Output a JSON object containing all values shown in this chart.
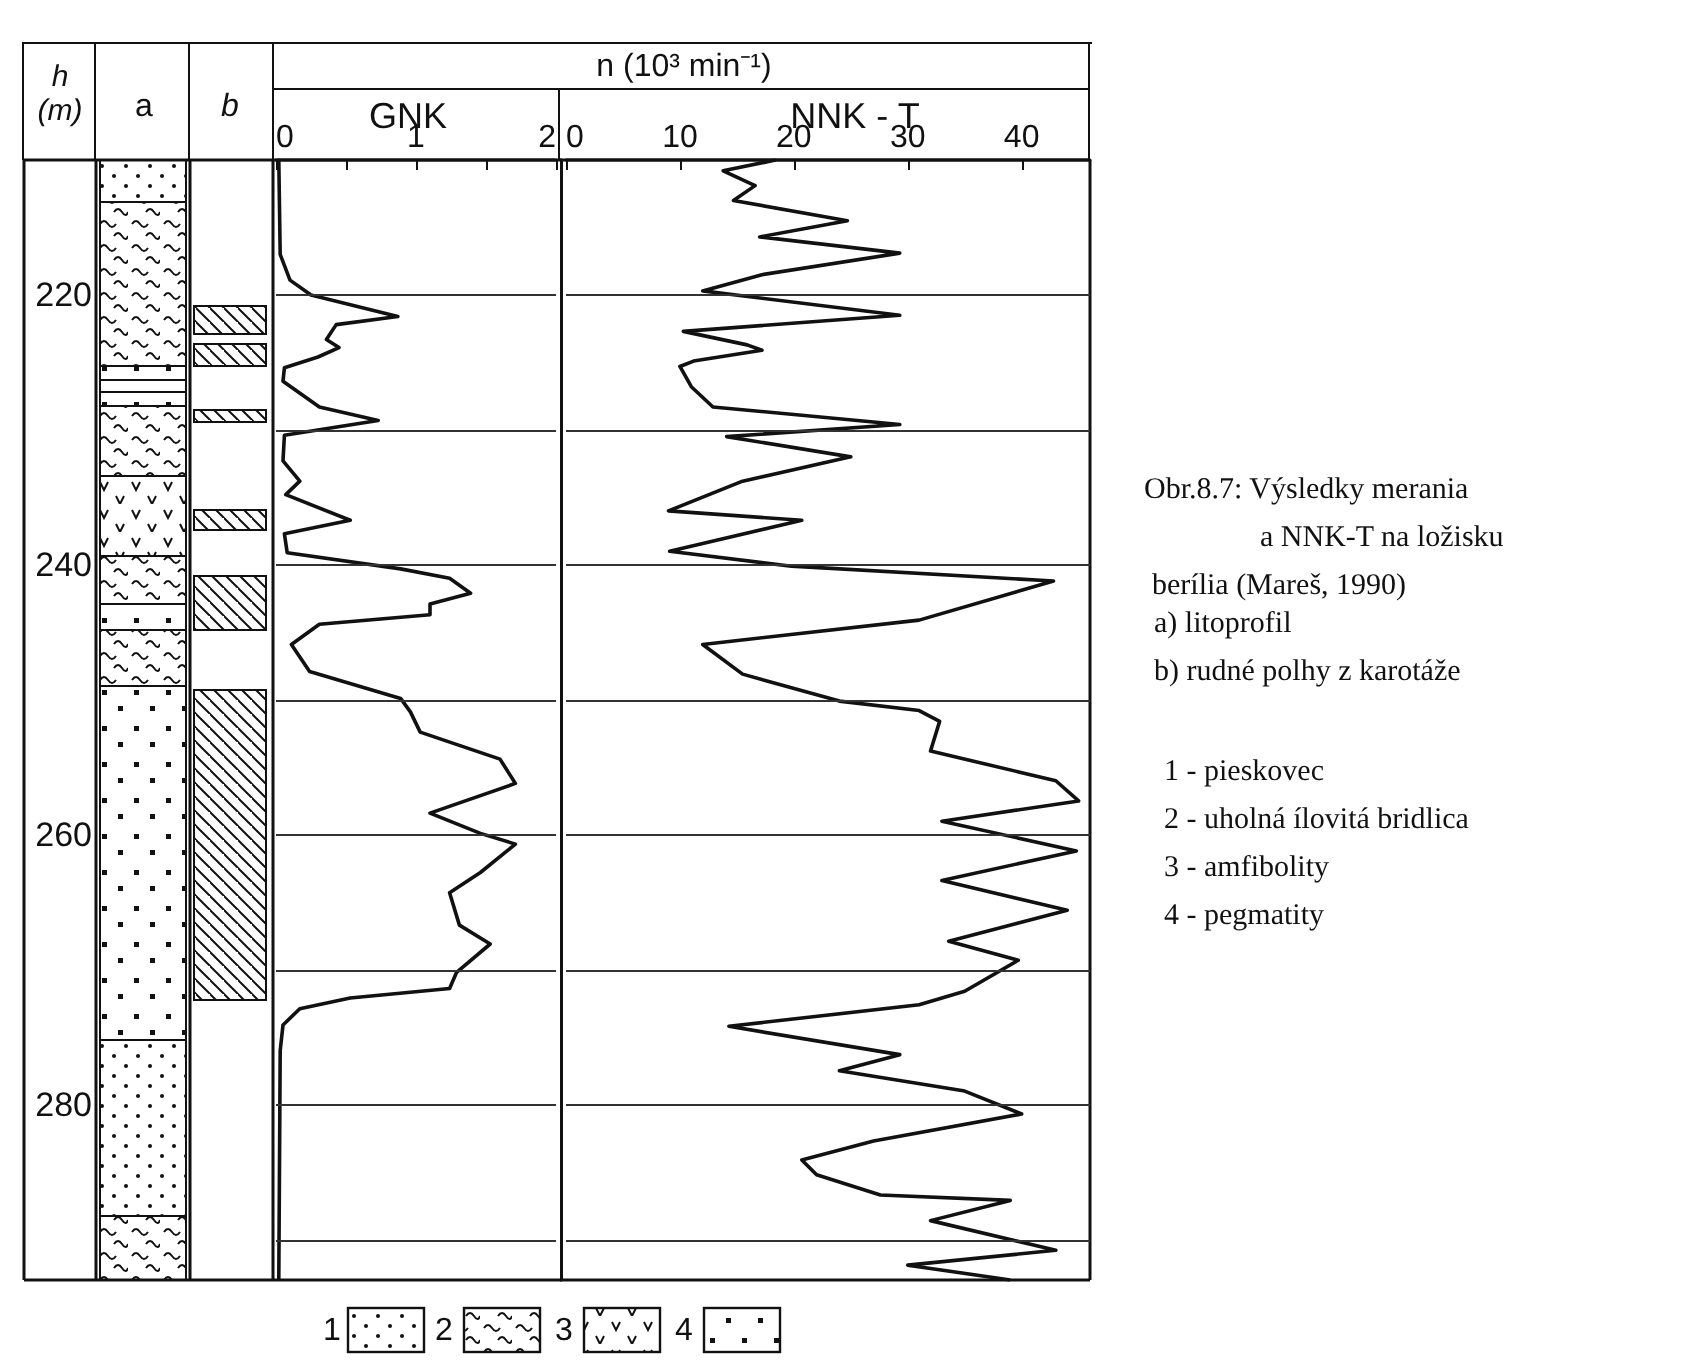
{
  "chart_data": [
    {
      "type": "line",
      "ylabel": "h (m)",
      "ylim": [
        293,
        210
      ],
      "yticks": [
        220,
        {
          "value": 230,
          "label": null
        },
        240,
        {
          "value": 250,
          "label": null
        },
        260,
        {
          "value": 270,
          "label": null
        },
        280,
        {
          "value": 290,
          "label": null
        }
      ],
      "xlim": [
        0,
        2
      ],
      "xticks": [
        0,
        {
          "value": 0.5,
          "label": null
        },
        1,
        {
          "value": 1.5,
          "label": null
        },
        2
      ],
      "grid": "y",
      "marker": "none",
      "series": [
        {
          "name": "GNK",
          "color": "#111111",
          "x": [
            0.02,
            0.03,
            0.1,
            0.25,
            0.87,
            0.43,
            0.36,
            0.45,
            0.3,
            0.06,
            0.05,
            0.31,
            0.73,
            0.06,
            0.05,
            0.17,
            0.07,
            0.53,
            0.06,
            0.08,
            0.89,
            1.24,
            1.39,
            1.1,
            1.1,
            0.31,
            0.11,
            0.24,
            0.89,
            0.96,
            1.03,
            1.6,
            1.71,
            1.1,
            1.46,
            1.71,
            1.46,
            1.24,
            1.31,
            1.53,
            1.29,
            1.24,
            0.53,
            0.17,
            0.05,
            0.03,
            0.02
          ],
          "values": [
            210,
            217,
            218.9,
            220,
            221.6,
            222.2,
            223.3,
            223.9,
            224.6,
            225.4,
            226.4,
            228.3,
            229.3,
            230.4,
            232.3,
            233.8,
            234.8,
            236.7,
            237.7,
            239.1,
            240.3,
            241,
            242.1,
            242.9,
            243.7,
            244.4,
            245.9,
            247.9,
            249.9,
            250.9,
            252.4,
            254.4,
            256.2,
            258.4,
            259.9,
            260.7,
            262.8,
            264.3,
            266.7,
            268.1,
            270.2,
            271.4,
            272.1,
            272.9,
            274.1,
            276,
            293
          ]
        }
      ],
      "annotations": [
        "a",
        "b",
        "Obr.8.7: Výsledky merania\na NNK-T na ložisku\nberília (Mareš, 1990)",
        "a) litoprofil",
        "b) rudné polhy z karotáže",
        "1 - pieskovec",
        "2 - uholná ílovitá bridlica",
        "3 - amfibolity",
        "4 - pegmatity",
        "1",
        "2",
        "3",
        "4"
      ]
    },
    {
      "type": "line",
      "title": "n (10³ min⁻¹)",
      "ylim": [
        293,
        210
      ],
      "yticks": [
        220,
        {
          "value": 230,
          "label": null
        },
        240,
        {
          "value": 250,
          "label": null
        },
        260,
        {
          "value": 270,
          "label": null
        },
        280,
        {
          "value": 290,
          "label": null
        }
      ],
      "xlim": [
        0,
        46
      ],
      "xticks": [
        0,
        10,
        20,
        30,
        40
      ],
      "tick_labels": "x",
      "grid": "y",
      "marker": "none",
      "series": [
        {
          "name": "NNK - T",
          "color": "#111111",
          "x": [
            18.4,
            13.8,
            16.6,
            14.7,
            24.7,
            17,
            29.3,
            17.2,
            12,
            29.3,
            10.3,
            15.9,
            17.2,
            11.2,
            10,
            11,
            12.9,
            29.3,
            14.1,
            25,
            15.5,
            9,
            20.7,
            9.1,
            19.8,
            42.8,
            31,
            12,
            15.5,
            24,
            31,
            32.8,
            32,
            43,
            45,
            33,
            44.8,
            33,
            44,
            33.6,
            39.7,
            35,
            31,
            14.3,
            29.3,
            24,
            35,
            40,
            27,
            20.7,
            22,
            27.6,
            39,
            32,
            43,
            30,
            39
          ],
          "values": [
            210,
            210.8,
            211.9,
            213,
            214.5,
            215.7,
            216.9,
            218.5,
            219.7,
            221.5,
            222.7,
            223.7,
            224.1,
            224.9,
            225.3,
            226.8,
            228.3,
            229.6,
            230.5,
            232,
            233.8,
            236,
            236.7,
            239,
            240.1,
            241.2,
            244.1,
            245.9,
            248.1,
            250.1,
            250.8,
            251.6,
            253.8,
            256,
            257.5,
            259,
            261.2,
            263.4,
            265.6,
            267.9,
            269.3,
            271.6,
            272.6,
            274.2,
            276.3,
            277.5,
            279,
            280.7,
            282.7,
            284.1,
            285.2,
            286.7,
            287.1,
            288.6,
            290.8,
            291.9,
            293
          ]
        }
      ]
    }
  ]
}
